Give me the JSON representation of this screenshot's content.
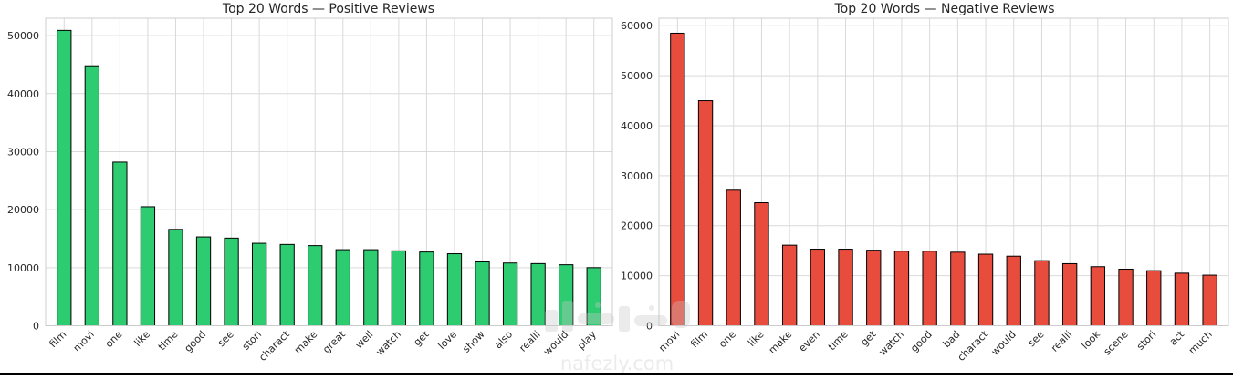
{
  "chart_data": [
    {
      "type": "bar",
      "title": "Top 20 Words — Positive Reviews",
      "categories": [
        "film",
        "movi",
        "one",
        "like",
        "time",
        "good",
        "see",
        "stori",
        "charact",
        "make",
        "great",
        "well",
        "watch",
        "get",
        "love",
        "show",
        "also",
        "realli",
        "would",
        "play"
      ],
      "values": [
        50900,
        44800,
        28200,
        20500,
        16600,
        15300,
        15100,
        14200,
        14000,
        13800,
        13100,
        13100,
        12900,
        12700,
        12400,
        11000,
        10800,
        10700,
        10500,
        10000
      ],
      "yticks": [
        0,
        10000,
        20000,
        30000,
        40000,
        50000
      ],
      "ylim": [
        0,
        53000
      ],
      "xlabel": "",
      "ylabel": "",
      "bar_color": "#2ecc71",
      "grid": true
    },
    {
      "type": "bar",
      "title": "Top 20 Words — Negative Reviews",
      "categories": [
        "movi",
        "film",
        "one",
        "like",
        "make",
        "even",
        "time",
        "get",
        "watch",
        "good",
        "bad",
        "charact",
        "would",
        "see",
        "realli",
        "look",
        "scene",
        "stori",
        "act",
        "much"
      ],
      "values": [
        58500,
        45000,
        27100,
        24600,
        16100,
        15300,
        15300,
        15100,
        14900,
        14900,
        14700,
        14300,
        13900,
        13000,
        12400,
        11800,
        11300,
        11000,
        10500,
        10100
      ],
      "yticks": [
        0,
        10000,
        20000,
        30000,
        40000,
        50000,
        60000
      ],
      "ylim": [
        0,
        61500
      ],
      "xlabel": "",
      "ylabel": "",
      "bar_color": "#e74c3c",
      "grid": true
    }
  ],
  "watermark": {
    "text": "nafezly.com",
    "icon": "nafezly-logo"
  }
}
